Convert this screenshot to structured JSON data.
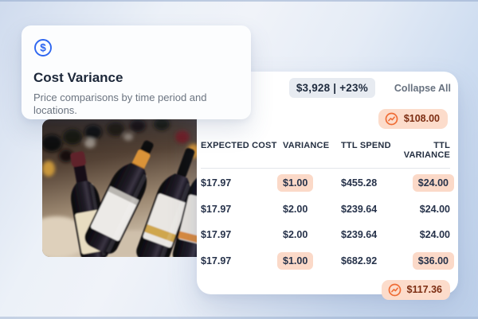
{
  "info_card": {
    "title": "Cost Variance",
    "description": "Price comparisons by time period and locations.",
    "icon": "dollar-circle-icon",
    "accent_color": "#2e66f0"
  },
  "photo": {
    "description": "wine bottles lying in a rack"
  },
  "table_card": {
    "summary_badge": "$3,928 | +23%",
    "collapse_all_label": "Collapse All",
    "top_total": {
      "value": "$108.00",
      "icon": "trending-up-icon"
    },
    "bottom_total": {
      "value": "$117.36",
      "icon": "trending-up-icon"
    },
    "columns": [
      "EXPECTED COST",
      "VARIANCE",
      "TTL SPEND",
      "TTL VARIANCE"
    ],
    "rows": [
      {
        "expected_cost": "$17.97",
        "variance": "$1.00",
        "variance_highlight": true,
        "ttl_spend": "$455.28",
        "ttl_variance": "$24.00",
        "ttl_variance_highlight": true
      },
      {
        "expected_cost": "$17.97",
        "variance": "$2.00",
        "variance_highlight": false,
        "ttl_spend": "$239.64",
        "ttl_variance": "$24.00",
        "ttl_variance_highlight": false
      },
      {
        "expected_cost": "$17.97",
        "variance": "$2.00",
        "variance_highlight": false,
        "ttl_spend": "$239.64",
        "ttl_variance": "$24.00",
        "ttl_variance_highlight": false
      },
      {
        "expected_cost": "$17.97",
        "variance": "$1.00",
        "variance_highlight": true,
        "ttl_spend": "$682.92",
        "ttl_variance": "$36.00",
        "ttl_variance_highlight": true
      }
    ],
    "colors": {
      "highlight_bg": "#fbd9c8",
      "summary_badge_bg": "#fcdccb",
      "summary_text": "#7c2d12",
      "accent_orange": "#ef6c35",
      "neutral_badge_bg": "#e7ebf1",
      "text_dark": "#26324a"
    }
  }
}
